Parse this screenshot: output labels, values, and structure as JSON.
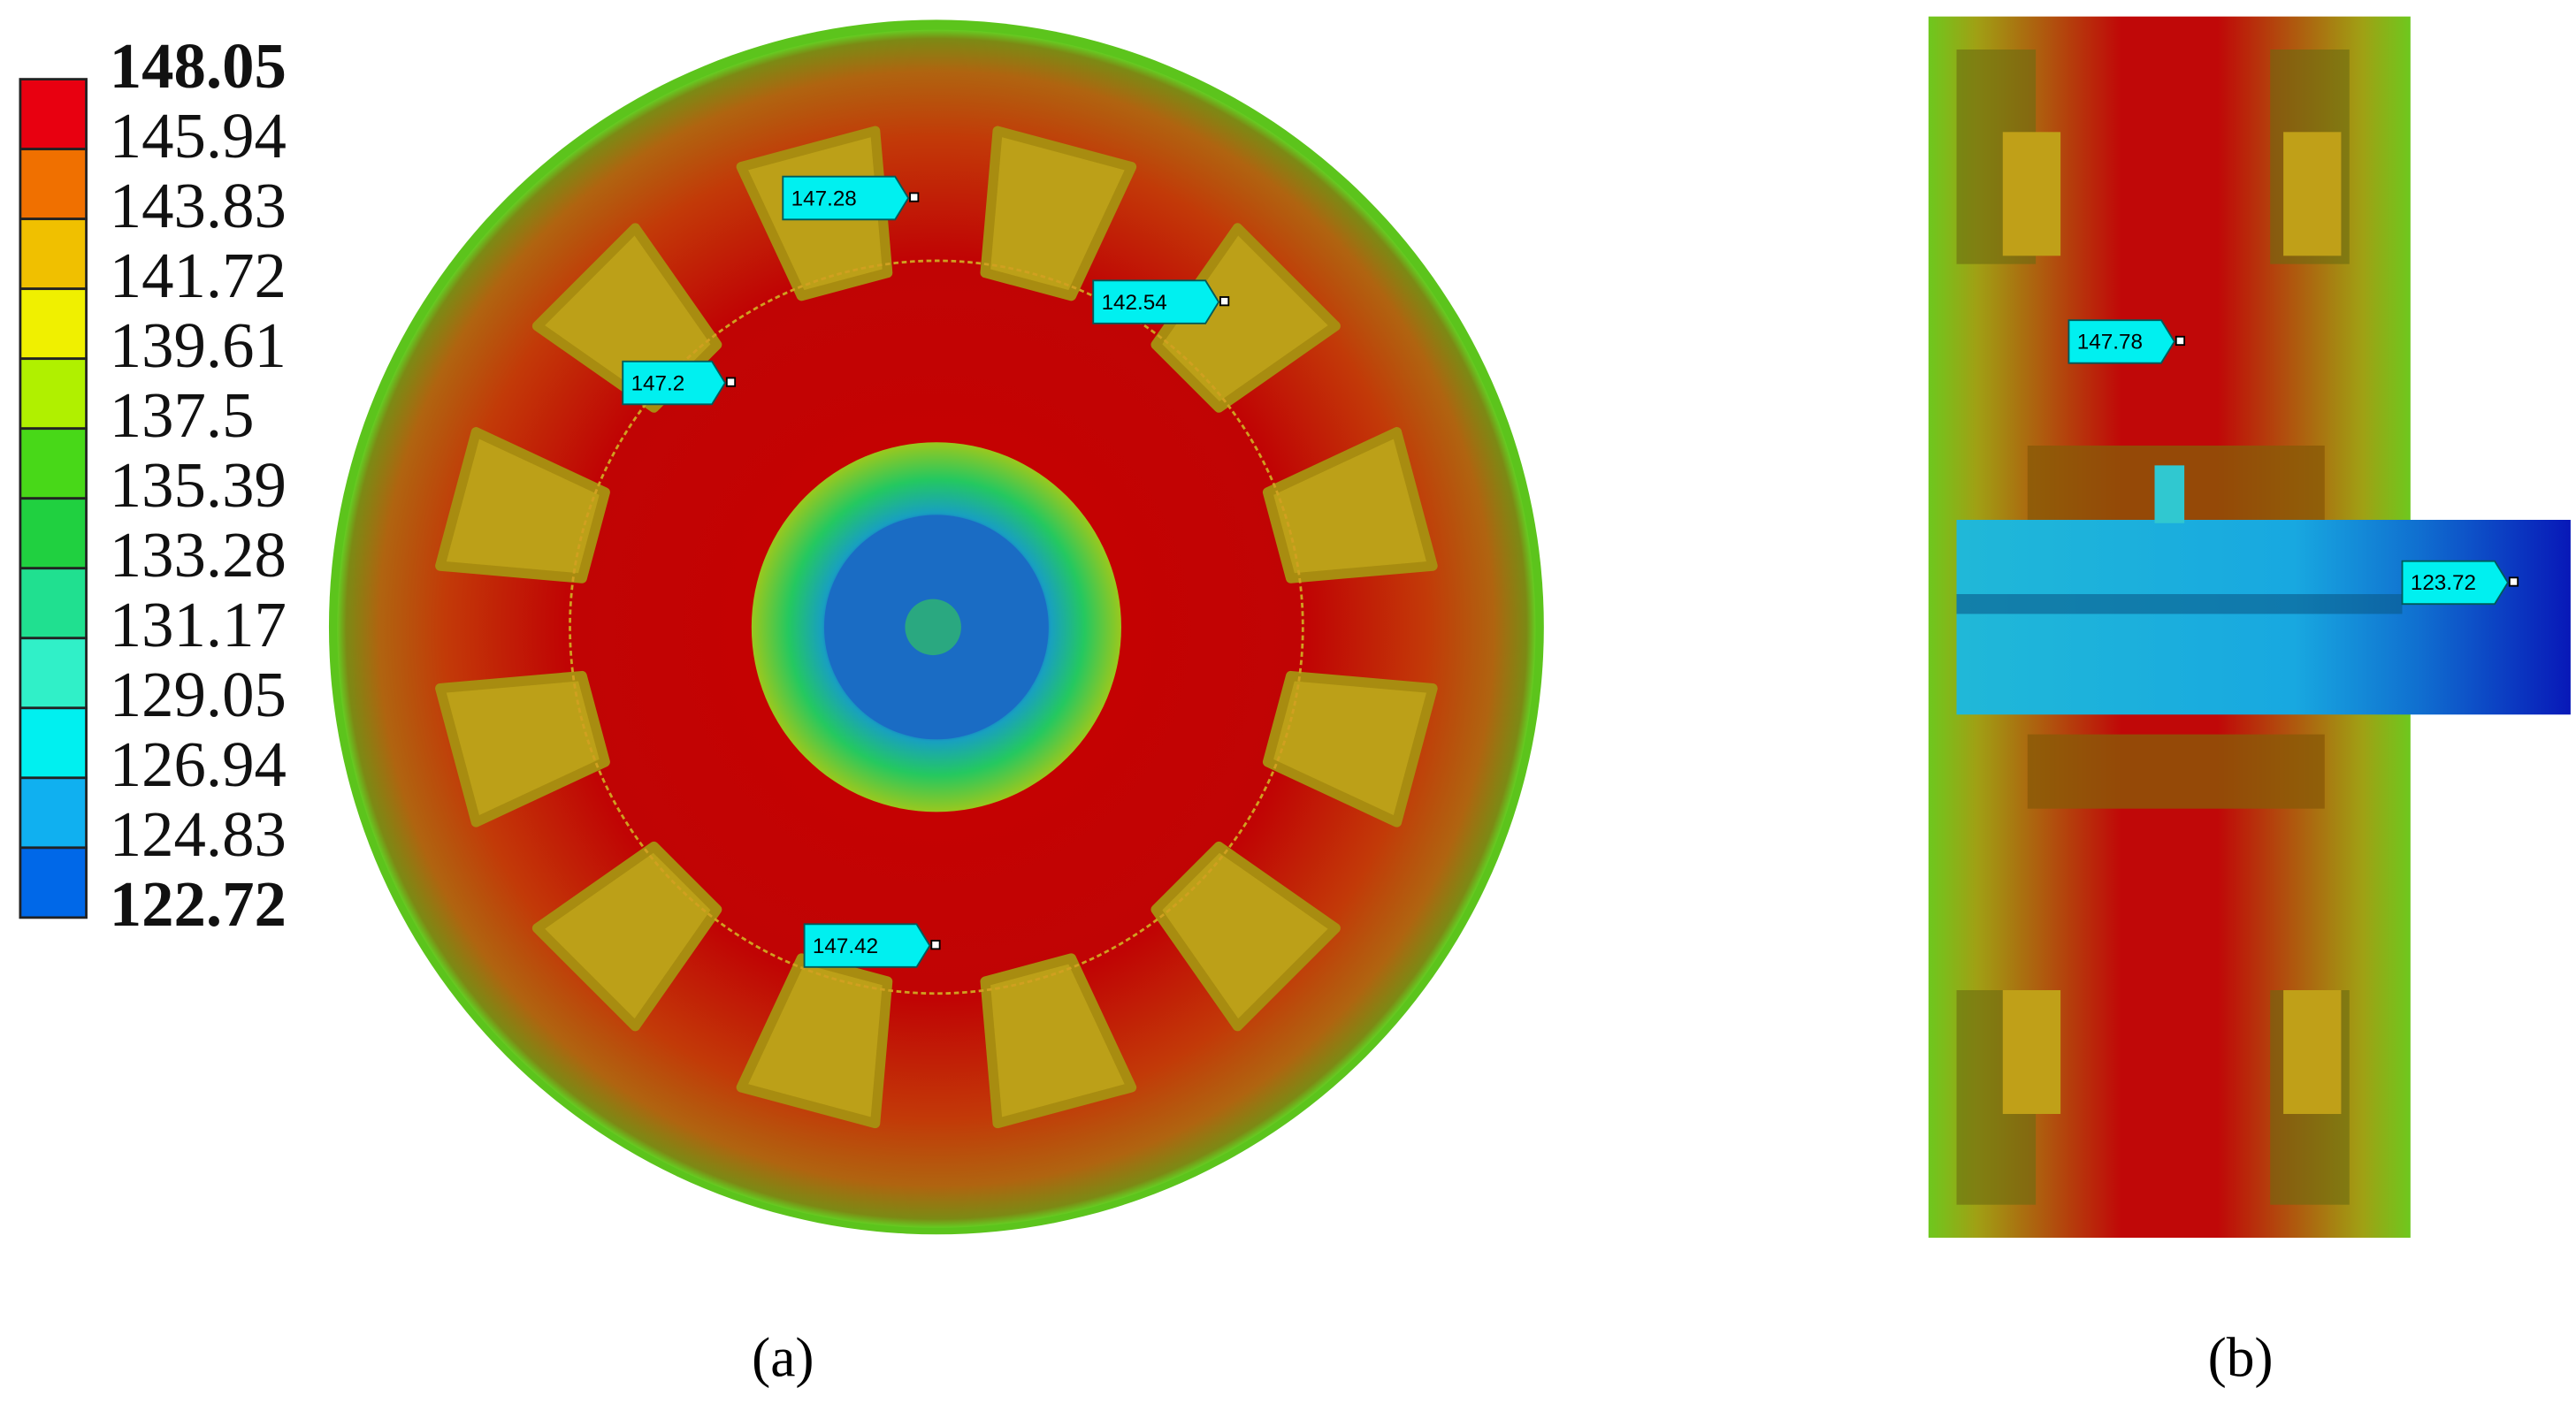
{
  "legend": {
    "levels": [
      "148.05",
      "145.94",
      "143.83",
      "141.72",
      "139.61",
      "137.5",
      "135.39",
      "133.28",
      "131.17",
      "129.05",
      "126.94",
      "124.83",
      "122.72"
    ]
  },
  "panel_a": {
    "probes": [
      "147.28",
      "142.54",
      "147.2",
      "147.42"
    ],
    "caption": "(a)"
  },
  "panel_b": {
    "probes": [
      "147.78",
      "123.72"
    ],
    "caption": "(b)"
  }
}
